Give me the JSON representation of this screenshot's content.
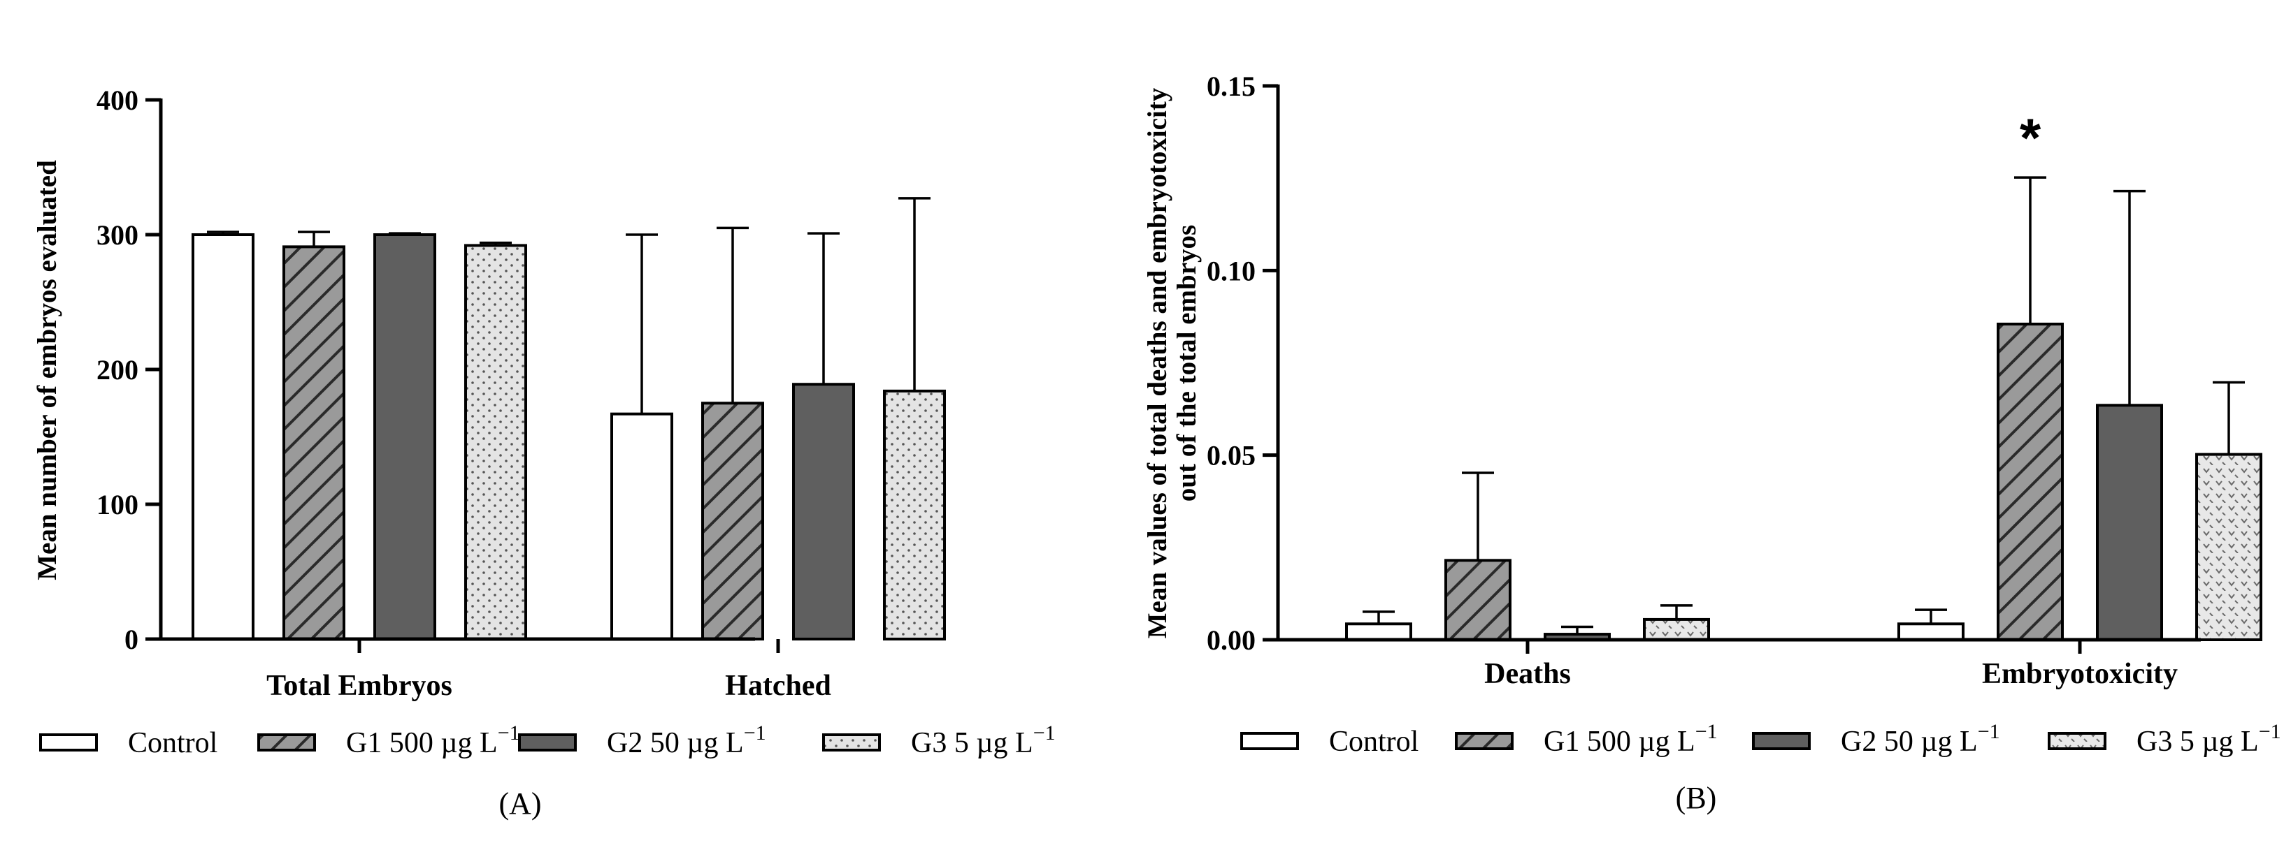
{
  "legend": [
    {
      "label": "Control",
      "pattern": "control"
    },
    {
      "label": "G1 500 µg L",
      "sup": "−1",
      "pattern": "g1"
    },
    {
      "label": "G2 50 µg L",
      "sup": "−1",
      "pattern": "g2"
    },
    {
      "label": "G3 5 µg L",
      "sup": "−1",
      "pattern": "g3"
    }
  ],
  "colors": {
    "control": "#ffffff",
    "g1_bg": "#9a9a9a",
    "g1_line": "#2a2a2a",
    "g2": "#5f5f5f",
    "g3_bg": "#e4e4e4",
    "g3_dot": "#555555",
    "axis": "#000000"
  },
  "chart_data": [
    {
      "type": "bar",
      "panel": "(A)",
      "title": "",
      "xlabel": "",
      "ylabel": "Mean number of embryos evaluated",
      "ylim": [
        0,
        400
      ],
      "yticks": [
        "0",
        "100",
        "200",
        "300",
        "400"
      ],
      "categories": [
        "Total Embryos",
        "Hatched"
      ],
      "series": [
        {
          "name": "Control",
          "values": [
            300,
            167
          ],
          "errors": [
            2,
            133
          ]
        },
        {
          "name": "G1 500 µg L−1",
          "values": [
            291,
            175
          ],
          "errors": [
            11,
            130
          ]
        },
        {
          "name": "G2 50 µg L−1",
          "values": [
            300,
            189
          ],
          "errors": [
            1,
            112
          ]
        },
        {
          "name": "G3 5 µg L−1",
          "values": [
            292,
            184
          ],
          "errors": [
            2,
            143
          ]
        }
      ],
      "annotations": []
    },
    {
      "type": "bar",
      "panel": "(B)",
      "title": "",
      "xlabel": "",
      "ylabel": [
        "Mean values of total deaths and embryotoxicity",
        "out of the  total embryos"
      ],
      "ylim": [
        0,
        0.15
      ],
      "yticks": [
        "0.00",
        "0.05",
        "0.10",
        "0.15"
      ],
      "categories": [
        "Deaths",
        "Embryotoxicity"
      ],
      "series": [
        {
          "name": "Control",
          "values": [
            0.0043,
            0.0043
          ],
          "errors": [
            0.0033,
            0.0038
          ]
        },
        {
          "name": "G1 500 µg L−1",
          "values": [
            0.0215,
            0.0855
          ],
          "errors": [
            0.0237,
            0.0397
          ]
        },
        {
          "name": "G2 50 µg L−1",
          "values": [
            0.0015,
            0.0635
          ],
          "errors": [
            0.002,
            0.058
          ]
        },
        {
          "name": "G3 5 µg L−1",
          "values": [
            0.0055,
            0.0502
          ],
          "errors": [
            0.0038,
            0.0195
          ]
        }
      ],
      "annotations": [
        {
          "text": "*",
          "category": "Embryotoxicity",
          "series": "G1 500 µg L−1"
        }
      ]
    }
  ]
}
